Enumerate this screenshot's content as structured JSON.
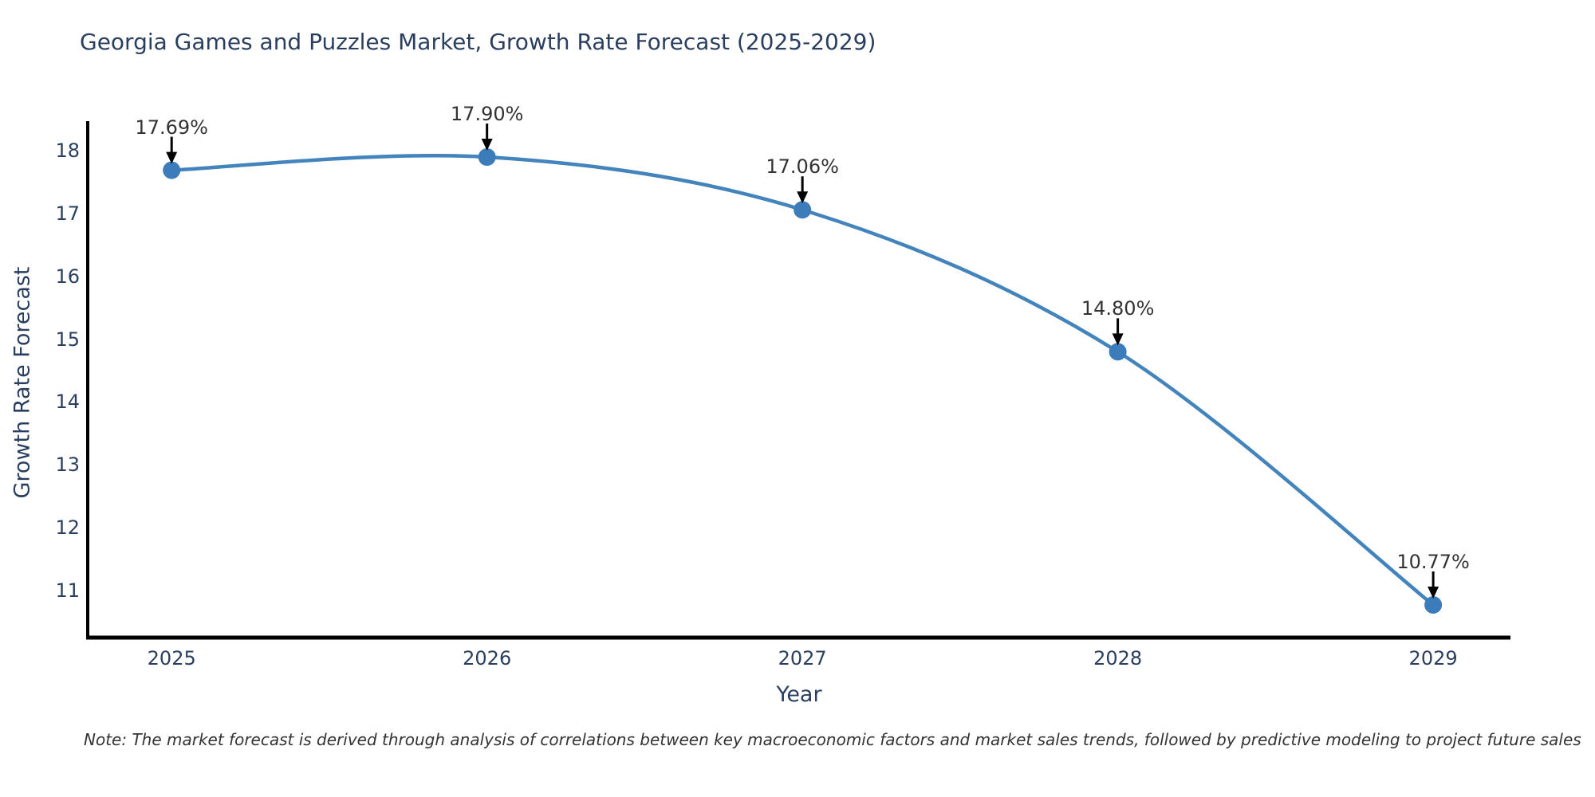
{
  "title": "Georgia Games and Puzzles Market, Growth Rate Forecast (2025-2029)",
  "note": "Note: The market forecast is derived through analysis of correlations between key macroeconomic factors and market sales trends, followed by predictive modeling to project future sales",
  "chart_data": {
    "type": "line",
    "line_shape": "spline",
    "title": "Georgia Games and Puzzles Market, Growth Rate Forecast (2025-2029)",
    "xlabel": "Year",
    "ylabel": "Growth Rate Forecast",
    "x": [
      2025,
      2026,
      2027,
      2028,
      2029
    ],
    "y": [
      17.69,
      17.9,
      17.06,
      14.8,
      10.77
    ],
    "point_labels": [
      "17.69%",
      "17.90%",
      "17.06%",
      "14.80%",
      "10.77%"
    ],
    "x_ticks": [
      "2025",
      "2026",
      "2027",
      "2028",
      "2029"
    ],
    "y_ticks": [
      "11",
      "12",
      "13",
      "14",
      "15",
      "16",
      "17",
      "18"
    ],
    "xlim": [
      2024.734,
      2029.245
    ],
    "ylim": [
      10.25,
      18.37
    ],
    "grid": false,
    "legend": "none",
    "colors": {
      "line": "#4384BD",
      "marker": "#3D7CBA",
      "axis": "#000000",
      "arrow": "#000000",
      "title_text": "#2a3f5f",
      "tick_text": "#2a3f5f",
      "annotation_text": "#333333",
      "background": "#ffffff"
    }
  }
}
